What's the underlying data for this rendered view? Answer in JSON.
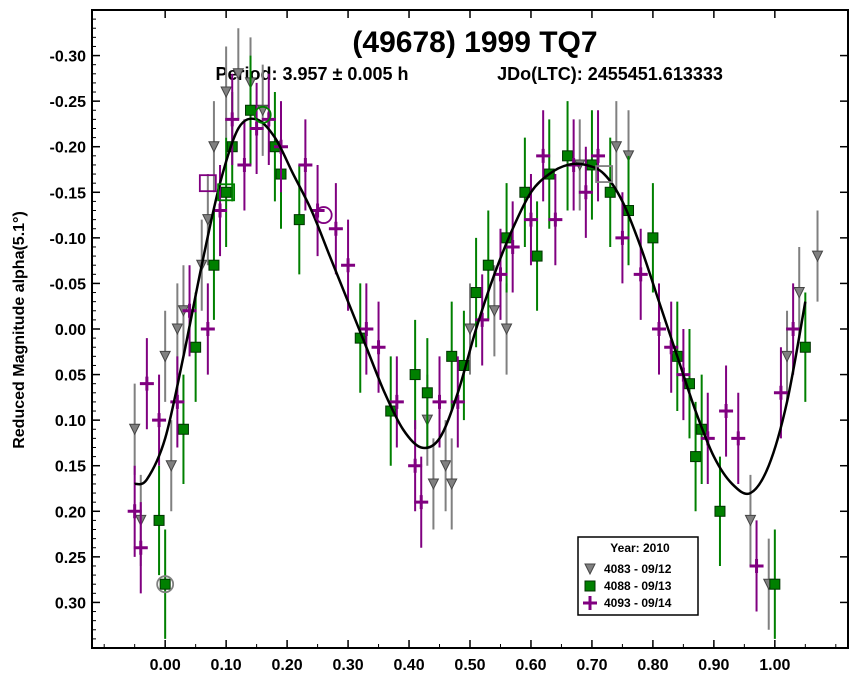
{
  "chart_data": {
    "type": "scatter",
    "title": "(49678) 1999 TQ7",
    "subtitle_left": "Period: 3.957 ± 0.005 h",
    "subtitle_right": "JDo(LTC): 2455451.613333",
    "xlabel": "",
    "ylabel": "Reduced Magnitude alpha(5.1°)",
    "xlim": [
      -0.12,
      1.12
    ],
    "ylim": [
      0.35,
      -0.35
    ],
    "y_inverted": true,
    "grid": false,
    "legend_position": "bottom-right",
    "legend_title": "Year: 2010",
    "x_ticks": [
      0.0,
      0.1,
      0.2,
      0.3,
      0.4,
      0.5,
      0.6,
      0.7,
      0.8,
      0.9,
      1.0
    ],
    "x_tick_labels": [
      "0.00",
      "0.10",
      "0.20",
      "0.30",
      "0.40",
      "0.50",
      "0.60",
      "0.70",
      "0.80",
      "0.90",
      "1.00"
    ],
    "y_ticks": [
      -0.3,
      -0.25,
      -0.2,
      -0.15,
      -0.1,
      -0.05,
      0.0,
      0.05,
      0.1,
      0.15,
      0.2,
      0.25,
      0.3
    ],
    "y_tick_labels": [
      "-0.30",
      "-0.25",
      "-0.20",
      "-0.15",
      "-0.10",
      "-0.05",
      "0.00",
      "0.05",
      "0.10",
      "0.15",
      "0.20",
      "0.25",
      "0.30"
    ],
    "fit_curve": {
      "x": [
        -0.05,
        -0.03,
        0.0,
        0.03,
        0.06,
        0.09,
        0.12,
        0.15,
        0.18,
        0.21,
        0.24,
        0.27,
        0.3,
        0.33,
        0.36,
        0.39,
        0.42,
        0.45,
        0.48,
        0.51,
        0.54,
        0.57,
        0.6,
        0.63,
        0.66,
        0.69,
        0.72,
        0.75,
        0.78,
        0.81,
        0.84,
        0.87,
        0.9,
        0.93,
        0.96,
        0.99,
        1.02,
        1.05
      ],
      "y": [
        0.17,
        0.165,
        0.12,
        0.03,
        -0.07,
        -0.16,
        -0.22,
        -0.23,
        -0.21,
        -0.17,
        -0.13,
        -0.08,
        -0.03,
        0.02,
        0.07,
        0.11,
        0.13,
        0.12,
        0.07,
        0.0,
        -0.06,
        -0.11,
        -0.15,
        -0.17,
        -0.18,
        -0.18,
        -0.17,
        -0.14,
        -0.09,
        -0.03,
        0.03,
        0.09,
        0.14,
        0.17,
        0.18,
        0.15,
        0.08,
        -0.03
      ],
      "color": "#000000"
    },
    "series": [
      {
        "name": "4083 - 09/12",
        "marker": "triangle-down",
        "color": "#808080",
        "points": [
          [
            -0.05,
            0.11,
            0.05
          ],
          [
            -0.04,
            0.21,
            0.05
          ],
          [
            0.0,
            0.03,
            0.05
          ],
          [
            0.01,
            0.15,
            0.05
          ],
          [
            0.02,
            0.0,
            0.05
          ],
          [
            0.03,
            -0.02,
            0.05
          ],
          [
            0.06,
            -0.07,
            0.05
          ],
          [
            0.07,
            -0.12,
            0.05
          ],
          [
            0.08,
            -0.2,
            0.05
          ],
          [
            0.1,
            -0.26,
            0.05
          ],
          [
            0.12,
            -0.28,
            0.05
          ],
          [
            0.14,
            -0.27,
            0.05
          ],
          [
            0.16,
            -0.24,
            0.05
          ],
          [
            0.43,
            0.1,
            0.05
          ],
          [
            0.44,
            0.17,
            0.05
          ],
          [
            0.46,
            0.15,
            0.05
          ],
          [
            0.47,
            0.17,
            0.05
          ],
          [
            0.5,
            0.0,
            0.05
          ],
          [
            0.54,
            -0.02,
            0.05
          ],
          [
            0.56,
            0.0,
            0.05
          ],
          [
            0.68,
            -0.18,
            0.05
          ],
          [
            0.74,
            -0.2,
            0.05
          ],
          [
            0.76,
            -0.19,
            0.05
          ],
          [
            0.96,
            0.21,
            0.05
          ],
          [
            0.99,
            0.28,
            0.05
          ],
          [
            1.02,
            0.03,
            0.05
          ],
          [
            1.04,
            -0.04,
            0.05
          ],
          [
            1.07,
            -0.08,
            0.05
          ]
        ]
      },
      {
        "name": "4088 - 09/13",
        "marker": "square",
        "color": "#008000",
        "points": [
          [
            -0.01,
            0.21,
            0.06
          ],
          [
            0.0,
            0.28,
            0.06
          ],
          [
            0.03,
            0.11,
            0.06
          ],
          [
            0.05,
            0.02,
            0.06
          ],
          [
            0.08,
            -0.07,
            0.06
          ],
          [
            0.1,
            -0.15,
            0.06
          ],
          [
            0.11,
            -0.2,
            0.06
          ],
          [
            0.14,
            -0.24,
            0.06
          ],
          [
            0.18,
            -0.2,
            0.06
          ],
          [
            0.19,
            -0.17,
            0.06
          ],
          [
            0.22,
            -0.12,
            0.06
          ],
          [
            0.32,
            0.01,
            0.06
          ],
          [
            0.37,
            0.09,
            0.06
          ],
          [
            0.41,
            0.05,
            0.06
          ],
          [
            0.43,
            0.07,
            0.06
          ],
          [
            0.47,
            0.03,
            0.06
          ],
          [
            0.49,
            0.04,
            0.06
          ],
          [
            0.51,
            -0.04,
            0.06
          ],
          [
            0.53,
            -0.07,
            0.06
          ],
          [
            0.56,
            -0.1,
            0.06
          ],
          [
            0.59,
            -0.15,
            0.06
          ],
          [
            0.61,
            -0.08,
            0.06
          ],
          [
            0.63,
            -0.17,
            0.06
          ],
          [
            0.66,
            -0.19,
            0.06
          ],
          [
            0.7,
            -0.18,
            0.06
          ],
          [
            0.73,
            -0.15,
            0.06
          ],
          [
            0.76,
            -0.13,
            0.06
          ],
          [
            0.8,
            -0.1,
            0.06
          ],
          [
            0.84,
            0.03,
            0.06
          ],
          [
            0.86,
            0.06,
            0.06
          ],
          [
            0.87,
            0.14,
            0.06
          ],
          [
            0.88,
            0.11,
            0.06
          ],
          [
            0.91,
            0.2,
            0.06
          ],
          [
            1.0,
            0.28,
            0.06
          ],
          [
            1.05,
            0.02,
            0.06
          ]
        ]
      },
      {
        "name": "4093 - 09/14",
        "marker": "plus",
        "color": "#800080",
        "points": [
          [
            -0.05,
            0.2,
            0.05
          ],
          [
            -0.04,
            0.24,
            0.05
          ],
          [
            -0.03,
            0.06,
            0.05
          ],
          [
            -0.01,
            0.1,
            0.05
          ],
          [
            0.02,
            0.08,
            0.05
          ],
          [
            0.04,
            -0.02,
            0.05
          ],
          [
            0.07,
            0.0,
            0.05
          ],
          [
            0.09,
            -0.13,
            0.05
          ],
          [
            0.11,
            -0.23,
            0.05
          ],
          [
            0.13,
            -0.18,
            0.05
          ],
          [
            0.15,
            -0.22,
            0.05
          ],
          [
            0.17,
            -0.23,
            0.05
          ],
          [
            0.19,
            -0.2,
            0.05
          ],
          [
            0.23,
            -0.18,
            0.05
          ],
          [
            0.25,
            -0.13,
            0.05
          ],
          [
            0.28,
            -0.11,
            0.05
          ],
          [
            0.3,
            -0.07,
            0.05
          ],
          [
            0.33,
            0.0,
            0.05
          ],
          [
            0.35,
            0.02,
            0.05
          ],
          [
            0.38,
            0.08,
            0.05
          ],
          [
            0.41,
            0.15,
            0.05
          ],
          [
            0.42,
            0.19,
            0.05
          ],
          [
            0.45,
            0.08,
            0.05
          ],
          [
            0.48,
            0.08,
            0.05
          ],
          [
            0.52,
            -0.01,
            0.05
          ],
          [
            0.55,
            -0.06,
            0.05
          ],
          [
            0.57,
            -0.09,
            0.05
          ],
          [
            0.6,
            -0.12,
            0.05
          ],
          [
            0.62,
            -0.19,
            0.05
          ],
          [
            0.64,
            -0.12,
            0.05
          ],
          [
            0.67,
            -0.18,
            0.05
          ],
          [
            0.69,
            -0.15,
            0.05
          ],
          [
            0.71,
            -0.19,
            0.05
          ],
          [
            0.75,
            -0.1,
            0.05
          ],
          [
            0.78,
            -0.06,
            0.05
          ],
          [
            0.81,
            0.0,
            0.05
          ],
          [
            0.83,
            0.02,
            0.05
          ],
          [
            0.85,
            0.05,
            0.05
          ],
          [
            0.89,
            0.12,
            0.05
          ],
          [
            0.92,
            0.09,
            0.05
          ],
          [
            0.94,
            0.12,
            0.05
          ],
          [
            0.97,
            0.26,
            0.05
          ],
          [
            1.01,
            0.07,
            0.05
          ],
          [
            1.03,
            0.0,
            0.05
          ]
        ]
      }
    ],
    "highlighted_points": [
      {
        "marker": "circle",
        "color": "#808080",
        "x": 0.0,
        "y": 0.28
      },
      {
        "marker": "circle",
        "color": "#008000",
        "x": 0.16,
        "y": -0.235
      },
      {
        "marker": "circle",
        "color": "#800080",
        "x": 0.26,
        "y": -0.125
      },
      {
        "marker": "square-open",
        "color": "#800080",
        "x": 0.07,
        "y": -0.16
      },
      {
        "marker": "square-open",
        "color": "#008000",
        "x": 0.1,
        "y": -0.15
      },
      {
        "marker": "square-open",
        "color": "#808080",
        "x": 0.72,
        "y": -0.17
      }
    ]
  }
}
